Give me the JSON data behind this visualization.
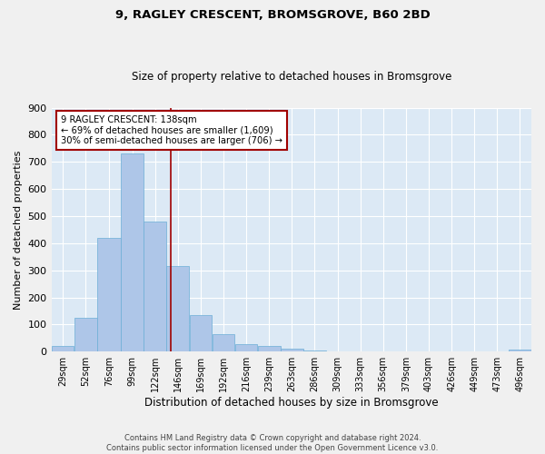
{
  "title_line1": "9, RAGLEY CRESCENT, BROMSGROVE, B60 2BD",
  "title_line2": "Size of property relative to detached houses in Bromsgrove",
  "xlabel": "Distribution of detached houses by size in Bromsgrove",
  "ylabel": "Number of detached properties",
  "footer_line1": "Contains HM Land Registry data © Crown copyright and database right 2024.",
  "footer_line2": "Contains public sector information licensed under the Open Government Licence v3.0.",
  "annotation_line1": "9 RAGLEY CRESCENT: 138sqm",
  "annotation_line2": "← 69% of detached houses are smaller (1,609)",
  "annotation_line3": "30% of semi-detached houses are larger (706) →",
  "property_size": 138,
  "bar_color": "#aec6e8",
  "bar_edge_color": "#6baed6",
  "vline_color": "#a00000",
  "bg_color": "#dce9f5",
  "grid_color": "#ffffff",
  "fig_bg_color": "#f0f0f0",
  "annotation_box_color": "#ffffff",
  "annotation_box_edge": "#a00000",
  "categories": [
    "29sqm",
    "52sqm",
    "76sqm",
    "99sqm",
    "122sqm",
    "146sqm",
    "169sqm",
    "192sqm",
    "216sqm",
    "239sqm",
    "263sqm",
    "286sqm",
    "309sqm",
    "333sqm",
    "356sqm",
    "379sqm",
    "403sqm",
    "426sqm",
    "449sqm",
    "473sqm",
    "496sqm"
  ],
  "bin_edges": [
    17.5,
    40.5,
    63.5,
    87.5,
    110.5,
    133.5,
    156.5,
    179.5,
    202.5,
    225.5,
    248.5,
    271.5,
    294.5,
    317.5,
    340.5,
    363.5,
    386.5,
    409.5,
    432.5,
    455.5,
    478.5,
    501.5
  ],
  "values": [
    20,
    125,
    420,
    730,
    480,
    315,
    135,
    65,
    27,
    22,
    12,
    5,
    0,
    0,
    0,
    0,
    0,
    0,
    0,
    0,
    8
  ],
  "ylim": [
    0,
    900
  ],
  "yticks": [
    0,
    100,
    200,
    300,
    400,
    500,
    600,
    700,
    800,
    900
  ]
}
